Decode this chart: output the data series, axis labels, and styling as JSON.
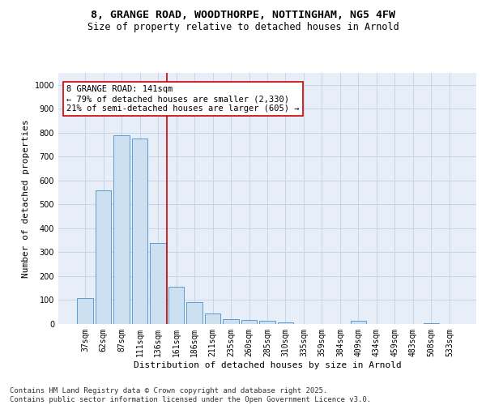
{
  "title_line1": "8, GRANGE ROAD, WOODTHORPE, NOTTINGHAM, NG5 4FW",
  "title_line2": "Size of property relative to detached houses in Arnold",
  "xlabel": "Distribution of detached houses by size in Arnold",
  "ylabel": "Number of detached properties",
  "categories": [
    "37sqm",
    "62sqm",
    "87sqm",
    "111sqm",
    "136sqm",
    "161sqm",
    "186sqm",
    "211sqm",
    "235sqm",
    "260sqm",
    "285sqm",
    "310sqm",
    "335sqm",
    "359sqm",
    "384sqm",
    "409sqm",
    "434sqm",
    "459sqm",
    "483sqm",
    "508sqm",
    "533sqm"
  ],
  "values": [
    110,
    560,
    790,
    775,
    340,
    155,
    90,
    45,
    22,
    18,
    12,
    8,
    0,
    0,
    0,
    12,
    0,
    0,
    0,
    5,
    0
  ],
  "bar_color": "#cce0f0",
  "bar_edge_color": "#5b9bd5",
  "vline_index": 4,
  "vline_color": "#cc0000",
  "annot_line1": "8 GRANGE ROAD: 141sqm",
  "annot_line2": "← 79% of detached houses are smaller (2,330)",
  "annot_line3": "21% of semi-detached houses are larger (605) →",
  "annotation_box_color": "#cc0000",
  "annotation_bg": "#ffffff",
  "yticks": [
    0,
    100,
    200,
    300,
    400,
    500,
    600,
    700,
    800,
    900,
    1000
  ],
  "ylim": [
    0,
    1050
  ],
  "grid_color": "#c8d4e8",
  "bg_color": "#e8eef8",
  "footer_line1": "Contains HM Land Registry data © Crown copyright and database right 2025.",
  "footer_line2": "Contains public sector information licensed under the Open Government Licence v3.0.",
  "title_fontsize": 9.5,
  "subtitle_fontsize": 8.5,
  "axis_label_fontsize": 8,
  "tick_fontsize": 7,
  "annot_fontsize": 7.5,
  "footer_fontsize": 6.5
}
